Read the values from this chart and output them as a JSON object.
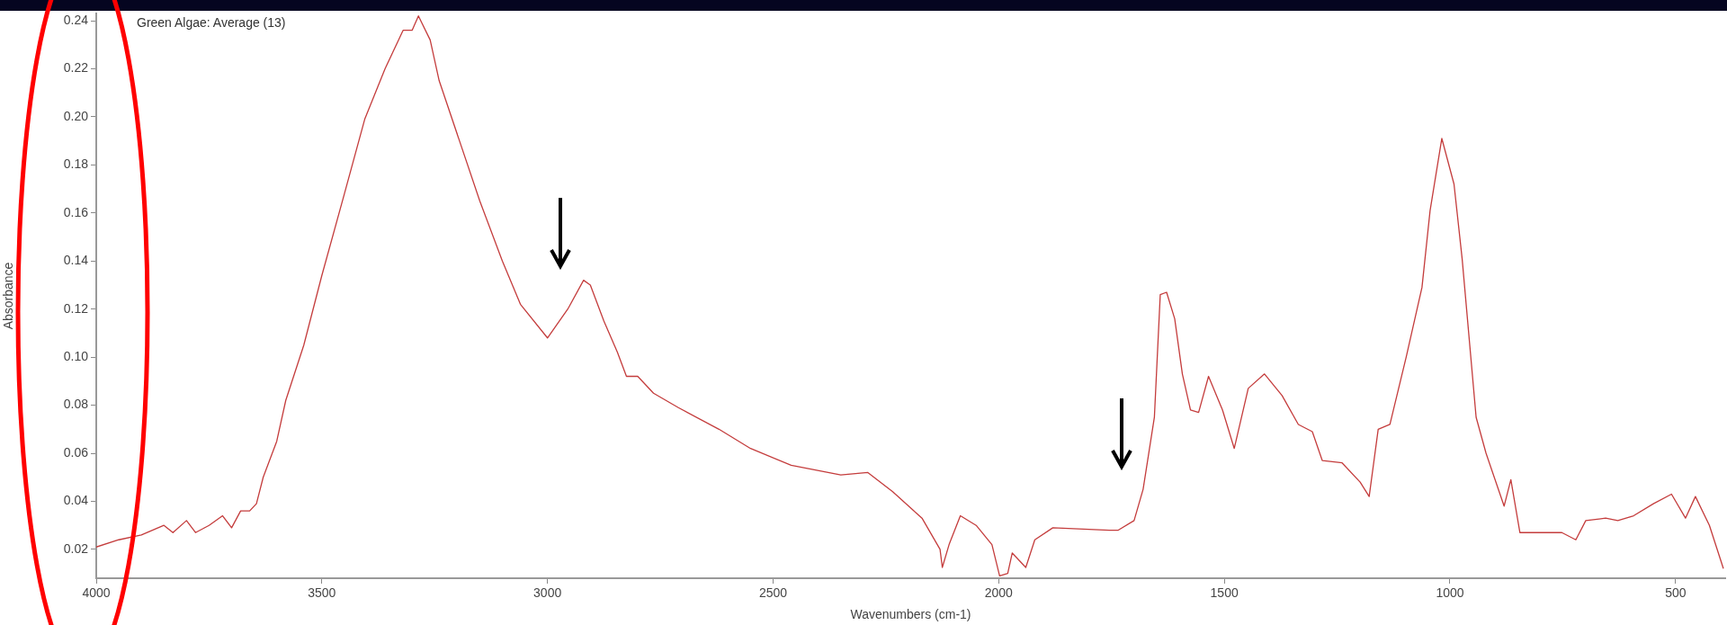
{
  "chart_data": {
    "type": "line",
    "title": "Green Algae: Average (13)",
    "xlabel": "Wavenumbers (cm-1)",
    "ylabel": "Absorbance",
    "xlim": [
      4000,
      390
    ],
    "xticks": [
      4000,
      3500,
      3000,
      2500,
      2000,
      1500,
      1000,
      500
    ],
    "ylim": [
      0.008,
      0.243
    ],
    "yticks": [
      0.02,
      0.04,
      0.06,
      0.08,
      {
        "value": 0.1,
        "label": "0.10"
      },
      0.12,
      0.14,
      0.16,
      0.18,
      {
        "value": 0.2,
        "label": "0.20"
      },
      0.22,
      0.24
    ],
    "grid": false,
    "legend": false,
    "marker": "none",
    "line_style": "solid",
    "series": [
      {
        "color": "#c43c3c",
        "x": [
          4000,
          3950,
          3900,
          3850,
          3830,
          3800,
          3780,
          3750,
          3720,
          3700,
          3680,
          3660,
          3645,
          3630,
          3600,
          3580,
          3540,
          3500,
          3450,
          3405,
          3360,
          3320,
          3300,
          3286,
          3260,
          3240,
          3195,
          3150,
          3100,
          3060,
          3000,
          2955,
          2920,
          2905,
          2875,
          2845,
          2825,
          2800,
          2765,
          2710,
          2620,
          2550,
          2460,
          2350,
          2290,
          2235,
          2170,
          2130,
          2125,
          2110,
          2085,
          2050,
          2015,
          1998,
          1980,
          1970,
          1940,
          1920,
          1880,
          1755,
          1735,
          1700,
          1680,
          1655,
          1642,
          1628,
          1610,
          1593,
          1575,
          1557,
          1535,
          1504,
          1478,
          1447,
          1411,
          1372,
          1336,
          1305,
          1283,
          1239,
          1199,
          1179,
          1159,
          1133,
          1097,
          1062,
          1044,
          1018,
          991,
          973,
          942,
          920,
          880,
          865,
          845,
          796,
          752,
          721,
          699,
          655,
          628,
          593,
          549,
          509,
          478,
          456,
          425,
          394
        ],
        "values": [
          0.021,
          0.024,
          0.026,
          0.03,
          0.027,
          0.032,
          0.027,
          0.03,
          0.034,
          0.029,
          0.036,
          0.036,
          0.039,
          0.05,
          0.065,
          0.082,
          0.105,
          0.134,
          0.168,
          0.199,
          0.22,
          0.236,
          0.236,
          0.242,
          0.232,
          0.215,
          0.19,
          0.165,
          0.14,
          0.122,
          0.108,
          0.12,
          0.132,
          0.13,
          0.115,
          0.102,
          0.092,
          0.092,
          0.085,
          0.079,
          0.07,
          0.062,
          0.055,
          0.051,
          0.052,
          0.044,
          0.033,
          0.02,
          0.0125,
          0.022,
          0.034,
          0.03,
          0.022,
          0.009,
          0.01,
          0.0185,
          0.0125,
          0.024,
          0.029,
          0.028,
          0.028,
          0.032,
          0.045,
          0.075,
          0.126,
          0.127,
          0.116,
          0.093,
          0.078,
          0.077,
          0.092,
          0.078,
          0.062,
          0.087,
          0.093,
          0.084,
          0.072,
          0.069,
          0.057,
          0.056,
          0.048,
          0.042,
          0.07,
          0.072,
          0.1,
          0.129,
          0.161,
          0.191,
          0.172,
          0.141,
          0.075,
          0.06,
          0.038,
          0.049,
          0.027,
          0.027,
          0.027,
          0.024,
          0.032,
          0.033,
          0.032,
          0.034,
          0.039,
          0.043,
          0.033,
          0.042,
          0.03,
          0.012
        ]
      }
    ]
  }
}
